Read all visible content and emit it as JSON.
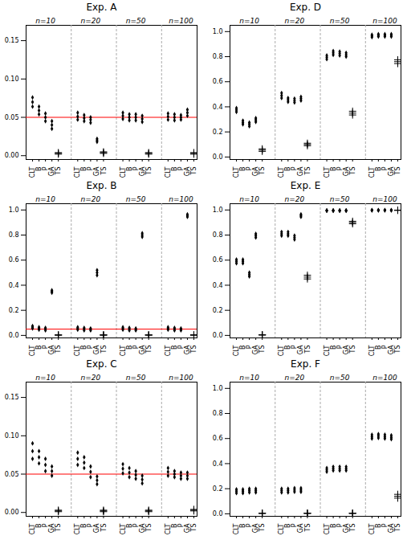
{
  "chart_data": [
    {
      "type": "scatter",
      "title": "Exp. A",
      "categories": [
        "CLT",
        "B",
        "P",
        "GA",
        "TS",
        "CLT",
        "B",
        "P",
        "GA",
        "TS",
        "CLT",
        "B",
        "P",
        "GA",
        "TS",
        "CLT",
        "B",
        "P",
        "GA",
        "TS"
      ],
      "series": [
        {
          "marker": "diamond",
          "color": "black",
          "values": [
            [
              0.076,
              0.07,
              0.064
            ],
            [
              0.064,
              0.059,
              0.054
            ],
            [
              0.055,
              0.05,
              0.045
            ],
            [
              0.045,
              0.04,
              0.035
            ],
            null,
            [
              0.056,
              0.051,
              0.047
            ],
            [
              0.053,
              0.049,
              0.045
            ],
            [
              0.05,
              0.047,
              0.043
            ],
            [
              0.022,
              0.02,
              0.018
            ],
            null,
            [
              0.056,
              0.052,
              0.048
            ],
            [
              0.054,
              0.05,
              0.046
            ],
            [
              0.054,
              0.05,
              0.046
            ],
            [
              0.052,
              0.048,
              0.044
            ],
            null,
            [
              0.055,
              0.051,
              0.047
            ],
            [
              0.054,
              0.05,
              0.046
            ],
            [
              0.053,
              0.05,
              0.047
            ],
            [
              0.06,
              0.056,
              0.052
            ],
            null
          ]
        },
        {
          "marker": "plus",
          "color": "black",
          "values": [
            null,
            null,
            null,
            null,
            [
              0.004,
              0.003,
              0.002
            ],
            null,
            null,
            null,
            null,
            [
              0.005,
              0.004,
              0.003
            ],
            null,
            null,
            null,
            null,
            [
              0.004,
              0.003,
              0.002
            ],
            null,
            null,
            null,
            null,
            [
              0.004,
              0.003,
              0.002
            ]
          ]
        }
      ],
      "annotations": [
        "n=10",
        "n=20",
        "n=50",
        "n=100"
      ],
      "reference_line": {
        "value": 0.05,
        "color": "red"
      },
      "ylim": [
        -0.005,
        0.17
      ],
      "yticks": [
        {
          "value": 0.0,
          "label": "0.00"
        },
        0.05,
        {
          "value": 0.1,
          "label": "0.10"
        },
        0.15
      ]
    },
    {
      "type": "scatter",
      "title": "Exp. B",
      "categories": [
        "CLT",
        "B",
        "P",
        "GA",
        "TS",
        "CLT",
        "B",
        "P",
        "GA",
        "TS",
        "CLT",
        "B",
        "P",
        "GA",
        "TS",
        "CLT",
        "B",
        "P",
        "GA",
        "TS"
      ],
      "series": [
        {
          "marker": "diamond",
          "color": "black",
          "values": [
            [
              0.075,
              0.065,
              0.055
            ],
            [
              0.065,
              0.055,
              0.045
            ],
            [
              0.06,
              0.05,
              0.04
            ],
            [
              0.36,
              0.35,
              0.34
            ],
            null,
            [
              0.065,
              0.055,
              0.045
            ],
            [
              0.06,
              0.05,
              0.04
            ],
            [
              0.055,
              0.048,
              0.04
            ],
            [
              0.52,
              0.5,
              0.48
            ],
            null,
            [
              0.065,
              0.055,
              0.045
            ],
            [
              0.06,
              0.05,
              0.04
            ],
            [
              0.055,
              0.048,
              0.04
            ],
            [
              0.815,
              0.8,
              0.785
            ],
            null,
            [
              0.065,
              0.055,
              0.045
            ],
            [
              0.06,
              0.05,
              0.04
            ],
            [
              0.055,
              0.048,
              0.04
            ],
            [
              0.965,
              0.955,
              0.945
            ],
            null
          ]
        },
        {
          "marker": "plus",
          "color": "black",
          "values": [
            null,
            null,
            null,
            null,
            [
              0.004,
              0.003,
              0.002
            ],
            null,
            null,
            null,
            null,
            [
              0.004,
              0.003,
              0.002
            ],
            null,
            null,
            null,
            null,
            [
              0.004,
              0.003,
              0.002
            ],
            null,
            null,
            null,
            null,
            [
              0.004,
              0.003,
              0.002
            ]
          ]
        }
      ],
      "annotations": [
        "n=10",
        "n=20",
        "n=50",
        "n=100"
      ],
      "reference_line": {
        "value": 0.05,
        "color": "red"
      },
      "ylim": [
        -0.02,
        1.05
      ],
      "yticks": [
        {
          "value": 0.0,
          "label": "0.0"
        },
        0.2,
        0.4,
        0.6,
        0.8,
        {
          "value": 1.0,
          "label": "1.0"
        }
      ]
    },
    {
      "type": "scatter",
      "title": "Exp. C",
      "categories": [
        "CLT",
        "B",
        "P",
        "GA",
        "TS",
        "CLT",
        "B",
        "P",
        "GA",
        "TS",
        "CLT",
        "B",
        "P",
        "GA",
        "TS",
        "CLT",
        "B",
        "P",
        "GA",
        "TS"
      ],
      "series": [
        {
          "marker": "diamond",
          "color": "black",
          "values": [
            [
              0.09,
              0.08,
              0.07
            ],
            [
              0.08,
              0.072,
              0.064
            ],
            [
              0.07,
              0.062,
              0.054
            ],
            [
              0.06,
              0.054,
              0.048
            ],
            null,
            [
              0.078,
              0.07,
              0.062
            ],
            [
              0.072,
              0.065,
              0.058
            ],
            [
              0.06,
              0.053,
              0.046
            ],
            [
              0.047,
              0.042,
              0.037
            ],
            null,
            [
              0.063,
              0.057,
              0.051
            ],
            [
              0.058,
              0.052,
              0.046
            ],
            [
              0.054,
              0.049,
              0.044
            ],
            [
              0.048,
              0.043,
              0.038
            ],
            null,
            [
              0.058,
              0.053,
              0.048
            ],
            [
              0.054,
              0.05,
              0.046
            ],
            [
              0.052,
              0.048,
              0.044
            ],
            [
              0.052,
              0.048,
              0.044
            ],
            null
          ]
        },
        {
          "marker": "plus",
          "color": "black",
          "values": [
            null,
            null,
            null,
            null,
            [
              0.003,
              0.002,
              0.001
            ],
            null,
            null,
            null,
            null,
            [
              0.003,
              0.002,
              0.001
            ],
            null,
            null,
            null,
            null,
            [
              0.003,
              0.002,
              0.001
            ],
            null,
            null,
            null,
            null,
            [
              0.004,
              0.003,
              0.002
            ]
          ]
        }
      ],
      "annotations": [
        "n=10",
        "n=20",
        "n=50",
        "n=100"
      ],
      "reference_line": {
        "value": 0.05,
        "color": "red"
      },
      "ylim": [
        -0.005,
        0.17
      ],
      "yticks": [
        {
          "value": 0.0,
          "label": "0.00"
        },
        0.05,
        {
          "value": 0.1,
          "label": "0.10"
        },
        0.15
      ]
    },
    {
      "type": "scatter",
      "title": "Exp. D",
      "categories": [
        "CLT",
        "B",
        "P",
        "GA",
        "TS",
        "CLT",
        "B",
        "P",
        "GA",
        "TS",
        "CLT",
        "B",
        "P",
        "GA",
        "TS",
        "CLT",
        "B",
        "P",
        "GA",
        "TS"
      ],
      "series": [
        {
          "marker": "diamond",
          "color": "black",
          "values": [
            [
              0.39,
              0.375,
              0.36
            ],
            [
              0.29,
              0.275,
              0.26
            ],
            [
              0.275,
              0.26,
              0.245
            ],
            [
              0.31,
              0.295,
              0.28
            ],
            null,
            [
              0.51,
              0.49,
              0.47
            ],
            [
              0.47,
              0.455,
              0.44
            ],
            [
              0.465,
              0.45,
              0.435
            ],
            [
              0.48,
              0.465,
              0.45
            ],
            null,
            [
              0.81,
              0.795,
              0.78
            ],
            [
              0.845,
              0.83,
              0.815
            ],
            [
              0.84,
              0.825,
              0.81
            ],
            [
              0.83,
              0.815,
              0.8
            ],
            null,
            [
              0.975,
              0.965,
              0.955
            ],
            [
              0.98,
              0.97,
              0.96
            ],
            [
              0.98,
              0.97,
              0.96
            ],
            [
              0.98,
              0.97,
              0.96
            ],
            null
          ]
        },
        {
          "marker": "plus",
          "color": "black",
          "values": [
            null,
            null,
            null,
            null,
            [
              0.065,
              0.055,
              0.045
            ],
            null,
            null,
            null,
            null,
            [
              0.11,
              0.1,
              0.09
            ],
            null,
            null,
            null,
            null,
            [
              0.365,
              0.35,
              0.335
            ],
            null,
            null,
            null,
            null,
            [
              0.775,
              0.76,
              0.745
            ]
          ]
        }
      ],
      "annotations": [
        "n=10",
        "n=20",
        "n=50",
        "n=100"
      ],
      "ylim": [
        -0.02,
        1.05
      ],
      "yticks": [
        {
          "value": 0.0,
          "label": "0.0"
        },
        0.2,
        0.4,
        0.6,
        0.8,
        {
          "value": 1.0,
          "label": "1.0"
        }
      ]
    },
    {
      "type": "scatter",
      "title": "Exp. E",
      "categories": [
        "CLT",
        "B",
        "P",
        "GA",
        "TS",
        "CLT",
        "B",
        "P",
        "GA",
        "TS",
        "CLT",
        "B",
        "P",
        "GA",
        "TS",
        "CLT",
        "B",
        "P",
        "GA",
        "TS"
      ],
      "series": [
        {
          "marker": "diamond",
          "color": "black",
          "values": [
            [
              0.605,
              0.59,
              0.575
            ],
            [
              0.605,
              0.59,
              0.575
            ],
            [
              0.5,
              0.485,
              0.47
            ],
            [
              0.81,
              0.795,
              0.78
            ],
            null,
            [
              0.825,
              0.81,
              0.795
            ],
            [
              0.825,
              0.81,
              0.795
            ],
            [
              0.795,
              0.78,
              0.765
            ],
            [
              0.965,
              0.955,
              0.945
            ],
            null,
            [
              0.997,
              0.995,
              0.993
            ],
            [
              0.997,
              0.995,
              0.993
            ],
            [
              0.997,
              0.995,
              0.993
            ],
            [
              0.997,
              0.995,
              0.993
            ],
            null,
            [
              0.999,
              0.998,
              0.997
            ],
            [
              0.999,
              0.998,
              0.997
            ],
            [
              0.999,
              0.998,
              0.997
            ],
            [
              0.999,
              0.998,
              0.997
            ],
            null
          ]
        },
        {
          "marker": "plus",
          "color": "black",
          "values": [
            null,
            null,
            null,
            null,
            [
              0.005,
              0.004,
              0.003
            ],
            null,
            null,
            null,
            null,
            [
              0.48,
              0.465,
              0.45
            ],
            null,
            null,
            null,
            null,
            [
              0.91,
              0.9,
              0.89
            ],
            null,
            null,
            null,
            null,
            [
              0.999,
              0.998,
              0.997
            ]
          ]
        }
      ],
      "annotations": [
        "n=10",
        "n=20",
        "n=50",
        "n=100"
      ],
      "ylim": [
        -0.02,
        1.05
      ],
      "yticks": [
        {
          "value": 0.0,
          "label": "0.0"
        },
        0.2,
        0.4,
        0.6,
        0.8,
        {
          "value": 1.0,
          "label": "1.0"
        }
      ]
    },
    {
      "type": "scatter",
      "title": "Exp. F",
      "categories": [
        "CLT",
        "B",
        "P",
        "GA",
        "TS",
        "CLT",
        "B",
        "P",
        "GA",
        "TS",
        "CLT",
        "B",
        "P",
        "GA",
        "TS",
        "CLT",
        "B",
        "P",
        "GA",
        "TS"
      ],
      "series": [
        {
          "marker": "diamond",
          "color": "black",
          "values": [
            [
              0.195,
              0.18,
              0.165
            ],
            [
              0.195,
              0.18,
              0.165
            ],
            [
              0.2,
              0.185,
              0.17
            ],
            [
              0.2,
              0.185,
              0.17
            ],
            null,
            [
              0.2,
              0.185,
              0.17
            ],
            [
              0.2,
              0.185,
              0.17
            ],
            [
              0.205,
              0.19,
              0.175
            ],
            [
              0.205,
              0.19,
              0.175
            ],
            null,
            [
              0.365,
              0.35,
              0.335
            ],
            [
              0.375,
              0.36,
              0.345
            ],
            [
              0.375,
              0.36,
              0.345
            ],
            [
              0.375,
              0.36,
              0.345
            ],
            null,
            [
              0.63,
              0.615,
              0.6
            ],
            [
              0.635,
              0.62,
              0.605
            ],
            [
              0.63,
              0.615,
              0.6
            ],
            [
              0.625,
              0.61,
              0.595
            ],
            null
          ]
        },
        {
          "marker": "plus",
          "color": "black",
          "values": [
            null,
            null,
            null,
            null,
            [
              0.005,
              0.004,
              0.003
            ],
            null,
            null,
            null,
            null,
            [
              0.005,
              0.004,
              0.003
            ],
            null,
            null,
            null,
            null,
            [
              0.005,
              0.004,
              0.003
            ],
            null,
            null,
            null,
            null,
            [
              0.155,
              0.14,
              0.125
            ]
          ]
        }
      ],
      "annotations": [
        "n=10",
        "n=20",
        "n=50",
        "n=100"
      ],
      "ylim": [
        -0.02,
        1.05
      ],
      "yticks": [
        {
          "value": 0.0,
          "label": "0.0"
        },
        0.2,
        0.4,
        0.6,
        0.8,
        {
          "value": 1.0,
          "label": "1.0"
        }
      ]
    }
  ]
}
